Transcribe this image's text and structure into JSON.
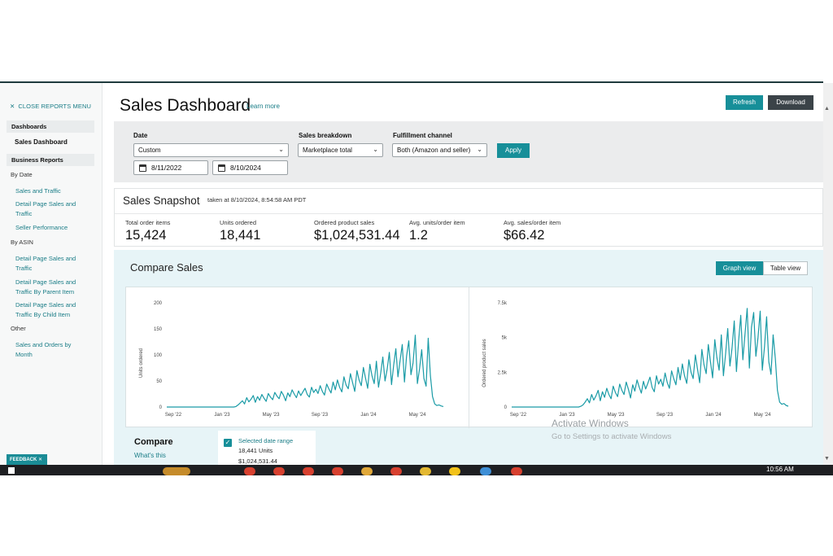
{
  "sidebar": {
    "close_menu": "CLOSE REPORTS MENU",
    "dashboards_header": "Dashboards",
    "active_item": "Sales Dashboard",
    "business_reports_header": "Business Reports",
    "by_date_label": "By Date",
    "by_date_items": [
      "Sales and Traffic",
      "Detail Page Sales and Traffic",
      "Seller Performance"
    ],
    "by_asin_label": "By ASIN",
    "by_asin_items": [
      "Detail Page Sales and Traffic",
      "Detail Page Sales and Traffic By Parent Item",
      "Detail Page Sales and Traffic By Child Item"
    ],
    "other_label": "Other",
    "other_items": [
      "Sales and Orders by Month"
    ],
    "feedback": "FEEDBACK"
  },
  "header": {
    "title": "Sales Dashboard",
    "learn_more": "Learn more",
    "refresh": "Refresh",
    "download": "Download"
  },
  "filters": {
    "date_label": "Date",
    "date_value": "Custom",
    "start_date": "8/11/2022",
    "end_date": "8/10/2024",
    "breakdown_label": "Sales breakdown",
    "breakdown_value": "Marketplace total",
    "fulfillment_label": "Fulfillment channel",
    "fulfillment_value": "Both (Amazon and seller)",
    "apply": "Apply"
  },
  "snapshot": {
    "title": "Sales Snapshot",
    "taken_at": "taken at 8/10/2024, 8:54:58 AM PDT",
    "metrics": [
      {
        "label": "Total order items",
        "value": "15,424"
      },
      {
        "label": "Units ordered",
        "value": "18,441"
      },
      {
        "label": "Ordered product sales",
        "value": "$1,024,531.44"
      },
      {
        "label": "Avg. units/order item",
        "value": "1.2"
      },
      {
        "label": "Avg. sales/order item",
        "value": "$66.42"
      }
    ]
  },
  "compare_sales": {
    "title": "Compare Sales",
    "graph_view": "Graph view",
    "table_view": "Table view",
    "compare_label": "Compare",
    "whats_this": "What's this",
    "selected_range_label": "Selected date range",
    "units_text": "18,441 Units",
    "sales_text": "$1,024,531.44"
  },
  "chart_data": [
    {
      "type": "line",
      "ylabel": "Units ordered",
      "ylim": [
        0,
        200
      ],
      "y_ticks": [
        "0",
        "50",
        "100",
        "150",
        "200"
      ],
      "x_ticks": [
        "Sep '22",
        "Jan '23",
        "May '23",
        "Sep '23",
        "Jan '24",
        "May '24"
      ],
      "series": [
        {
          "color": "#1a9ba6",
          "values": [
            0,
            0,
            0,
            0,
            0,
            0,
            0,
            0,
            0,
            0,
            0,
            0,
            0,
            0,
            0,
            0,
            0,
            0,
            0,
            0,
            0,
            0,
            0,
            0,
            0,
            0,
            0,
            0,
            0,
            0,
            0,
            0,
            1,
            4,
            8,
            12,
            6,
            18,
            10,
            15,
            22,
            9,
            20,
            13,
            24,
            17,
            11,
            26,
            19,
            14,
            28,
            21,
            16,
            30,
            23,
            12,
            27,
            20,
            33,
            25,
            18,
            31,
            22,
            29,
            36,
            24,
            19,
            38,
            28,
            34,
            26,
            41,
            30,
            23,
            44,
            35,
            27,
            48,
            33,
            52,
            38,
            29,
            58,
            42,
            35,
            64,
            47,
            30,
            70,
            52,
            41,
            76,
            55,
            36,
            82,
            60,
            45,
            88,
            38,
            65,
            96,
            50,
            72,
            105,
            43,
            80,
            112,
            58,
            90,
            120,
            48,
            98,
            127,
            62,
            85,
            138,
            45,
            74,
            110,
            55,
            40,
            132,
            60,
            20,
            6,
            3,
            4,
            2,
            1
          ]
        }
      ]
    },
    {
      "type": "line",
      "ylabel": "Ordered product sales",
      "ylim": [
        0,
        7500
      ],
      "y_ticks": [
        "0",
        "2.5k",
        "5k",
        "7.5k"
      ],
      "x_ticks": [
        "Sep '22",
        "Jan '23",
        "May '23",
        "Sep '23",
        "Jan '24",
        "May '24"
      ],
      "series": [
        {
          "color": "#1a9ba6",
          "values": [
            0,
            0,
            0,
            0,
            0,
            0,
            0,
            0,
            0,
            0,
            0,
            0,
            0,
            0,
            0,
            0,
            0,
            0,
            0,
            0,
            0,
            0,
            0,
            0,
            0,
            0,
            0,
            0,
            0,
            0,
            0,
            0,
            50,
            150,
            350,
            600,
            300,
            900,
            500,
            800,
            1200,
            450,
            1100,
            700,
            1350,
            900,
            600,
            1500,
            1050,
            750,
            1650,
            1200,
            900,
            1800,
            1300,
            650,
            1600,
            1150,
            1950,
            1450,
            1000,
            1850,
            1300,
            1700,
            2150,
            1400,
            1100,
            2250,
            1650,
            2000,
            1500,
            2450,
            1750,
            1350,
            2600,
            2050,
            1600,
            2850,
            1950,
            3100,
            2250,
            1700,
            3400,
            2500,
            2050,
            3750,
            2750,
            1750,
            4150,
            3050,
            2400,
            4500,
            3250,
            2100,
            4850,
            3550,
            2650,
            5200,
            2250,
            3850,
            5650,
            2950,
            4250,
            6200,
            2550,
            4700,
            6600,
            3400,
            5300,
            7100,
            2800,
            5750,
            6800,
            3650,
            5000,
            6900,
            2650,
            4350,
            6500,
            3250,
            2350,
            5200,
            3500,
            1200,
            350,
            200,
            250,
            120,
            60
          ]
        }
      ]
    }
  ],
  "watermark": {
    "title": "Activate Windows",
    "subtitle": "Go to Settings to activate Windows"
  },
  "taskbar": {
    "clock": "10:56 AM"
  }
}
